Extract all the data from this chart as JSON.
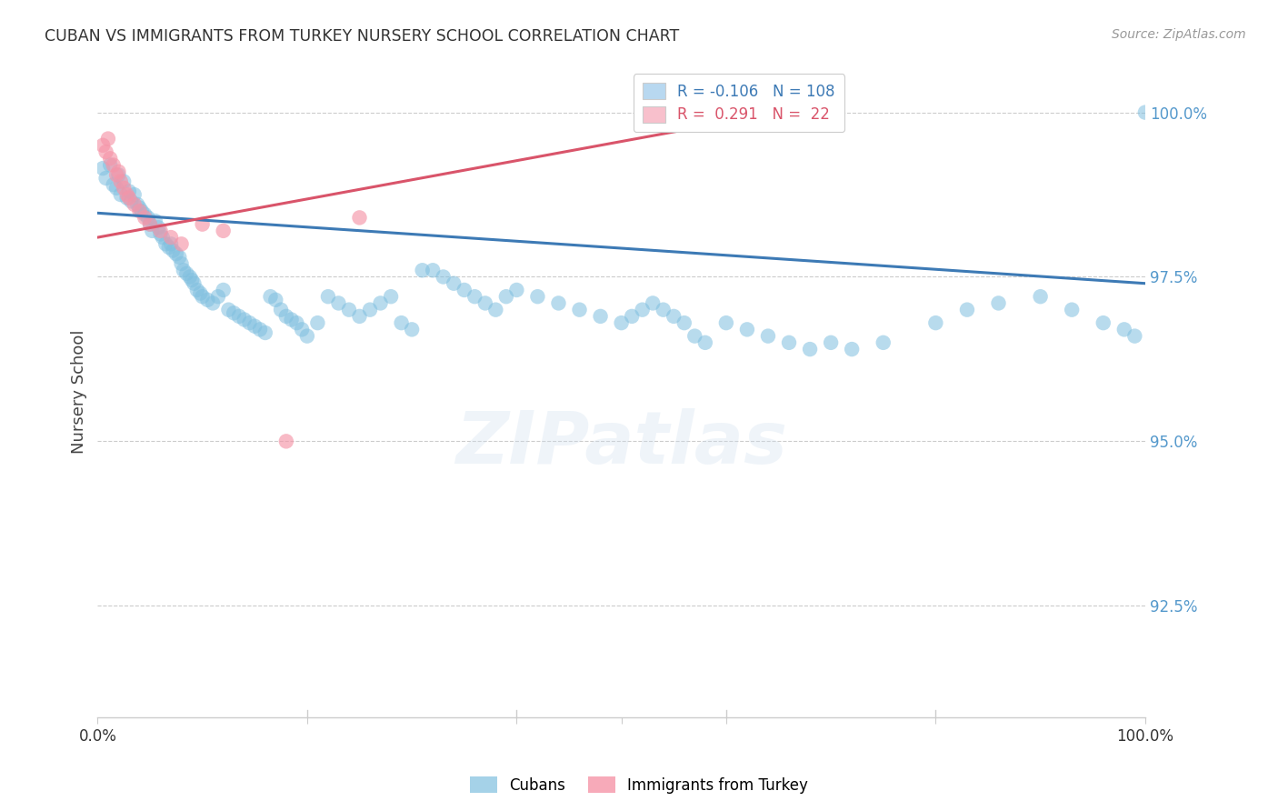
{
  "title": "CUBAN VS IMMIGRANTS FROM TURKEY NURSERY SCHOOL CORRELATION CHART",
  "source": "Source: ZipAtlas.com",
  "ylabel": "Nursery School",
  "ytick_labels": [
    "100.0%",
    "97.5%",
    "95.0%",
    "92.5%"
  ],
  "ytick_values": [
    1.0,
    0.975,
    0.95,
    0.925
  ],
  "xlim": [
    0.0,
    1.0
  ],
  "ylim": [
    0.908,
    1.007
  ],
  "watermark": "ZIPatlas",
  "blue_color": "#7fbfdf",
  "pink_color": "#f595a8",
  "blue_line_color": "#3d7ab5",
  "pink_line_color": "#d9546a",
  "legend_blue_color": "#b8d8f0",
  "legend_pink_color": "#f8c0cc",
  "legend_border_color": "#cccccc",
  "grid_color": "#cccccc",
  "spine_color": "#cccccc",
  "ytick_color": "#5599cc",
  "xtick_label_color": "#333333",
  "title_color": "#333333",
  "source_color": "#999999",
  "blue_trend_x0": 0.0,
  "blue_trend_x1": 1.0,
  "blue_trend_y0": 0.9847,
  "blue_trend_y1": 0.974,
  "pink_trend_x0": 0.0,
  "pink_trend_x1": 0.6,
  "pink_trend_y0": 0.981,
  "pink_trend_y1": 0.9985,
  "cubans_x": [
    0.005,
    0.008,
    0.012,
    0.015,
    0.018,
    0.02,
    0.022,
    0.025,
    0.028,
    0.03,
    0.032,
    0.035,
    0.038,
    0.04,
    0.042,
    0.045,
    0.048,
    0.05,
    0.052,
    0.055,
    0.058,
    0.06,
    0.062,
    0.065,
    0.068,
    0.07,
    0.072,
    0.075,
    0.078,
    0.08,
    0.082,
    0.085,
    0.088,
    0.09,
    0.092,
    0.095,
    0.098,
    0.1,
    0.105,
    0.11,
    0.115,
    0.12,
    0.125,
    0.13,
    0.135,
    0.14,
    0.145,
    0.15,
    0.155,
    0.16,
    0.165,
    0.17,
    0.175,
    0.18,
    0.185,
    0.19,
    0.195,
    0.2,
    0.21,
    0.22,
    0.23,
    0.24,
    0.25,
    0.26,
    0.27,
    0.28,
    0.29,
    0.3,
    0.31,
    0.32,
    0.33,
    0.34,
    0.35,
    0.36,
    0.37,
    0.38,
    0.39,
    0.4,
    0.42,
    0.44,
    0.46,
    0.48,
    0.5,
    0.51,
    0.52,
    0.53,
    0.54,
    0.55,
    0.56,
    0.57,
    0.58,
    0.6,
    0.62,
    0.64,
    0.66,
    0.68,
    0.7,
    0.72,
    0.75,
    0.8,
    0.83,
    0.86,
    0.9,
    0.93,
    0.96,
    0.98,
    0.99,
    1.0
  ],
  "cubans_y": [
    0.9915,
    0.99,
    0.992,
    0.989,
    0.9885,
    0.9905,
    0.9875,
    0.9895,
    0.987,
    0.988,
    0.9865,
    0.9875,
    0.986,
    0.9855,
    0.985,
    0.9845,
    0.984,
    0.983,
    0.982,
    0.9835,
    0.9825,
    0.9815,
    0.981,
    0.98,
    0.9795,
    0.98,
    0.979,
    0.9785,
    0.978,
    0.977,
    0.976,
    0.9755,
    0.975,
    0.9745,
    0.974,
    0.973,
    0.9725,
    0.972,
    0.9715,
    0.971,
    0.972,
    0.973,
    0.97,
    0.9695,
    0.969,
    0.9685,
    0.968,
    0.9675,
    0.967,
    0.9665,
    0.972,
    0.9715,
    0.97,
    0.969,
    0.9685,
    0.968,
    0.967,
    0.966,
    0.968,
    0.972,
    0.971,
    0.97,
    0.969,
    0.97,
    0.971,
    0.972,
    0.968,
    0.967,
    0.976,
    0.976,
    0.975,
    0.974,
    0.973,
    0.972,
    0.971,
    0.97,
    0.972,
    0.973,
    0.972,
    0.971,
    0.97,
    0.969,
    0.968,
    0.969,
    0.97,
    0.971,
    0.97,
    0.969,
    0.968,
    0.966,
    0.965,
    0.968,
    0.967,
    0.966,
    0.965,
    0.964,
    0.965,
    0.964,
    0.965,
    0.968,
    0.97,
    0.971,
    0.972,
    0.97,
    0.968,
    0.967,
    0.966,
    1.0
  ],
  "turkey_x": [
    0.005,
    0.008,
    0.01,
    0.012,
    0.015,
    0.018,
    0.02,
    0.022,
    0.025,
    0.028,
    0.03,
    0.035,
    0.04,
    0.045,
    0.05,
    0.06,
    0.07,
    0.08,
    0.1,
    0.12,
    0.18,
    0.25
  ],
  "turkey_y": [
    0.995,
    0.994,
    0.996,
    0.993,
    0.992,
    0.9905,
    0.991,
    0.9895,
    0.9885,
    0.9875,
    0.987,
    0.986,
    0.985,
    0.984,
    0.983,
    0.982,
    0.981,
    0.98,
    0.983,
    0.982,
    0.95,
    0.984
  ]
}
